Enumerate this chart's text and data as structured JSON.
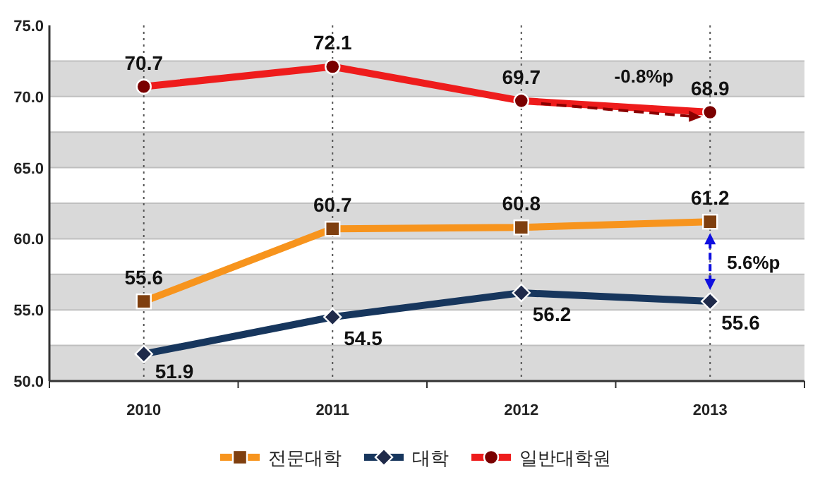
{
  "chart_data": {
    "type": "line",
    "categories": [
      "2010",
      "2011",
      "2012",
      "2013"
    ],
    "series": [
      {
        "name": "전문대학",
        "color": "#f7941d",
        "marker": "square",
        "values": [
          55.6,
          60.7,
          60.8,
          61.2
        ]
      },
      {
        "name": "대학",
        "color": "#17365d",
        "marker": "diamond",
        "values": [
          51.9,
          54.5,
          56.2,
          55.6
        ]
      },
      {
        "name": "일반대학원",
        "color": "#ee1c1c",
        "marker": "circle",
        "values": [
          70.7,
          72.1,
          69.7,
          68.9
        ]
      }
    ],
    "ylim": [
      50,
      75
    ],
    "yticks": [
      {
        "value": 50,
        "label": "50.0"
      },
      {
        "value": 55,
        "label": "55.0"
      },
      {
        "value": 60,
        "label": "60.0"
      },
      {
        "value": 65,
        "label": "65.0"
      },
      {
        "value": 70,
        "label": "70.0"
      },
      {
        "value": 75,
        "label": "75.0"
      }
    ],
    "bands": [
      {
        "axis": "y",
        "from": 50,
        "to": 52.5,
        "color": "#d9d9d9"
      },
      {
        "axis": "y",
        "from": 55,
        "to": 57.5,
        "color": "#d9d9d9"
      },
      {
        "axis": "y",
        "from": 60,
        "to": 62.5,
        "color": "#d9d9d9"
      },
      {
        "axis": "y",
        "from": 65,
        "to": 67.5,
        "color": "#d9d9d9"
      },
      {
        "axis": "y",
        "from": 70,
        "to": 72.5,
        "color": "#d9d9d9"
      }
    ],
    "grid": true,
    "data_labels": true,
    "legend": "bottom",
    "annotations": [
      "-0.8%p",
      "5.6%p"
    ]
  }
}
